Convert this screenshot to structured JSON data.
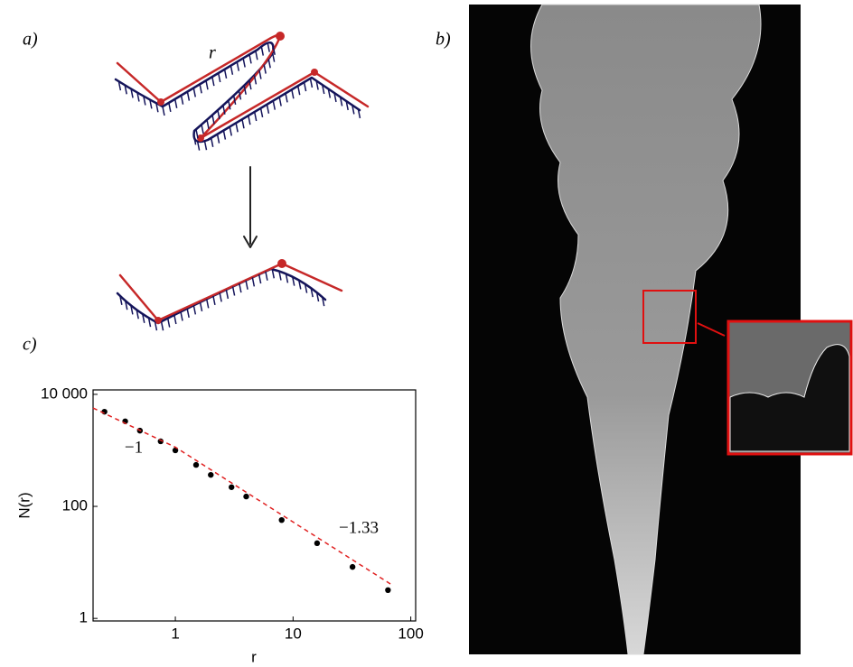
{
  "panels": {
    "a": {
      "label": "a)",
      "annotation": "r"
    },
    "b": {
      "label": "b)"
    },
    "c": {
      "label": "c)"
    }
  },
  "chart_data": {
    "type": "scatter",
    "xlabel": "r",
    "ylabel": "N(r)",
    "log_x": true,
    "log_y": true,
    "xlim": [
      0.2,
      110
    ],
    "ylim": [
      0.9,
      12000
    ],
    "xticks": [
      1,
      10,
      100
    ],
    "yticks": [
      1,
      100,
      {
        "value": 10000,
        "label": "10 000"
      }
    ],
    "series": [
      {
        "color": "#000000",
        "x": [
          0.25,
          0.375,
          0.5,
          0.75,
          1,
          1.5,
          2,
          3,
          4,
          8,
          16,
          32,
          64
        ],
        "values": [
          4900,
          3300,
          2250,
          1450,
          1000,
          550,
          365,
          220,
          150,
          57,
          22,
          8.3,
          3.2
        ]
      },
      {
        "color": "#e02020",
        "style": "dashed",
        "x": [
          0.2,
          1,
          70
        ],
        "values": [
          5700,
          1140,
          3.9
        ]
      }
    ],
    "annotations": [
      "−1",
      "−1.33"
    ]
  }
}
